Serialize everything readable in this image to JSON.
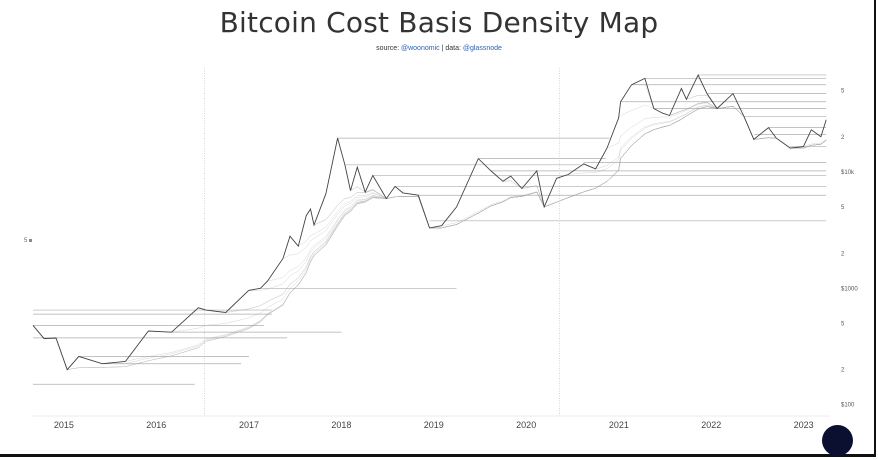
{
  "header": {
    "title": "Bitcoin Cost Basis Density Map",
    "source_prefix": "source:",
    "source_handle": "@woonomic",
    "data_prefix": "| data:",
    "data_handle": "@glassnode"
  },
  "left_marker": "5",
  "colors": {
    "price_line": "#444444",
    "density_lines": "#9a9a9a",
    "link": "#2a62b8",
    "avatar": "#0c1030"
  },
  "chart_data": {
    "type": "line",
    "title": "Bitcoin Cost Basis Density Map",
    "x_tick_labels": [
      "2015",
      "2016",
      "2017",
      "2018",
      "2019",
      "2020",
      "2021",
      "2022",
      "2023"
    ],
    "y_tick_labels": [
      "5",
      "2",
      "$10k",
      "5",
      "2",
      "$1000",
      "5",
      "2",
      "$100"
    ],
    "y_scale": "log",
    "xlim": [
      "2014-09-01",
      "2023-04-15"
    ],
    "ylim": [
      80,
      75000
    ],
    "grid": false,
    "vertical_markers": [
      "2016-07-09",
      "2020-05-11"
    ],
    "series": [
      {
        "x": [
          "2014-09-01",
          "2014-10-15",
          "2014-12-01",
          "2015-01-14",
          "2015-03-01",
          "2015-06-01",
          "2015-09-01",
          "2015-12-01",
          "2016-03-01",
          "2016-06-15",
          "2016-07-15",
          "2016-10-01",
          "2016-12-31",
          "2017-02-15",
          "2017-03-15",
          "2017-05-15",
          "2017-06-12",
          "2017-07-15",
          "2017-08-15",
          "2017-09-01",
          "2017-09-15",
          "2017-11-01",
          "2017-12-17",
          "2018-01-15",
          "2018-02-06",
          "2018-03-05",
          "2018-04-05",
          "2018-05-05",
          "2018-06-28",
          "2018-08-01",
          "2018-09-01",
          "2018-11-01",
          "2018-12-15",
          "2019-02-01",
          "2019-04-01",
          "2019-06-26",
          "2019-08-15",
          "2019-10-01",
          "2019-11-01",
          "2019-12-15",
          "2020-02-12",
          "2020-03-12",
          "2020-04-30",
          "2020-06-15",
          "2020-08-15",
          "2020-10-01",
          "2020-11-15",
          "2020-12-31",
          "2021-01-08",
          "2021-02-20",
          "2021-04-14",
          "2021-05-19",
          "2021-06-22",
          "2021-07-20",
          "2021-09-05",
          "2021-09-25",
          "2021-11-10",
          "2021-12-15",
          "2022-01-24",
          "2022-03-28",
          "2022-05-10",
          "2022-06-18",
          "2022-08-15",
          "2022-09-15",
          "2022-11-09",
          "2022-12-31",
          "2023-01-31",
          "2023-03-10",
          "2023-03-31"
        ],
        "values": [
          480,
          370,
          375,
          200,
          260,
          225,
          235,
          430,
          420,
          680,
          650,
          620,
          960,
          1000,
          1150,
          1800,
          2800,
          2300,
          4200,
          4800,
          3500,
          6500,
          19500,
          11500,
          6900,
          11000,
          6700,
          9300,
          5900,
          7500,
          6600,
          6300,
          3300,
          3450,
          5000,
          13000,
          10200,
          8300,
          9200,
          7200,
          10200,
          5000,
          8800,
          9500,
          11700,
          10600,
          16000,
          29000,
          40000,
          56000,
          63500,
          35000,
          32000,
          30500,
          52000,
          42000,
          68000,
          47000,
          35000,
          47000,
          30000,
          19000,
          24000,
          19500,
          16000,
          16500,
          23000,
          20000,
          28000
        ]
      }
    ],
    "cost_basis_levels": [
      {
        "price": 19500,
        "from": "2017-12-17",
        "to": "2020-11-25"
      },
      {
        "price": 11500,
        "from": "2018-01-15",
        "to": "2020-08-01"
      },
      {
        "price": 9300,
        "from": "2018-05-05",
        "to": "2023-03-31"
      },
      {
        "price": 7500,
        "from": "2018-08-01",
        "to": "2023-03-31"
      },
      {
        "price": 6300,
        "from": "2018-11-01",
        "to": "2023-03-31"
      },
      {
        "price": 3800,
        "from": "2018-12-15",
        "to": "2023-03-31"
      },
      {
        "price": 13000,
        "from": "2019-06-26",
        "to": "2020-11-10"
      },
      {
        "price": 10200,
        "from": "2019-08-15",
        "to": "2023-03-31"
      },
      {
        "price": 12000,
        "from": "2020-08-15",
        "to": "2023-03-31"
      },
      {
        "price": 68000,
        "from": "2021-11-10",
        "to": "2023-03-31"
      },
      {
        "price": 63500,
        "from": "2021-04-14",
        "to": "2023-03-31"
      },
      {
        "price": 56000,
        "from": "2021-02-20",
        "to": "2023-03-31"
      },
      {
        "price": 47000,
        "from": "2021-12-15",
        "to": "2023-03-31"
      },
      {
        "price": 40000,
        "from": "2021-01-08",
        "to": "2023-03-31"
      },
      {
        "price": 35000,
        "from": "2021-05-19",
        "to": "2023-03-31"
      },
      {
        "price": 30000,
        "from": "2022-05-10",
        "to": "2023-03-31"
      },
      {
        "price": 24000,
        "from": "2022-08-15",
        "to": "2023-03-31"
      },
      {
        "price": 21000,
        "from": "2022-06-20",
        "to": "2023-03-31"
      },
      {
        "price": 16500,
        "from": "2022-11-09",
        "to": "2023-03-31"
      },
      {
        "price": 1000,
        "from": "2017-02-15",
        "to": "2019-04-01"
      },
      {
        "price": 650,
        "from": "2014-09-01",
        "to": "2017-04-01"
      },
      {
        "price": 600,
        "from": "2014-09-01",
        "to": "2017-04-01"
      },
      {
        "price": 480,
        "from": "2014-09-01",
        "to": "2017-03-01"
      },
      {
        "price": 420,
        "from": "2016-03-01",
        "to": "2018-01-01"
      },
      {
        "price": 375,
        "from": "2014-09-01",
        "to": "2017-06-01"
      },
      {
        "price": 260,
        "from": "2015-03-01",
        "to": "2017-01-01"
      },
      {
        "price": 225,
        "from": "2015-06-01",
        "to": "2016-12-01"
      },
      {
        "price": 150,
        "from": "2014-09-01",
        "to": "2016-06-01"
      }
    ]
  }
}
